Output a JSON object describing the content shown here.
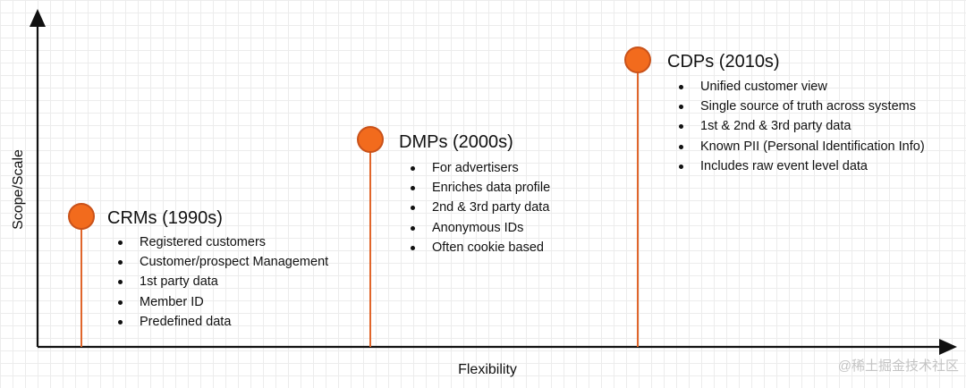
{
  "axes": {
    "y_label": "Scope/Scale",
    "x_label": "Flexibility"
  },
  "colors": {
    "marker_fill": "#f26b1d",
    "marker_stroke": "#c9521a",
    "stem": "#e0652a",
    "axis": "#111111"
  },
  "groups": [
    {
      "title": "CRMs (1990s)",
      "bullets": [
        "Registered customers",
        "Customer/prospect Management",
        "1st party data",
        "Member ID",
        "Predefined data"
      ]
    },
    {
      "title": "DMPs (2000s)",
      "bullets": [
        "For advertisers",
        "Enriches data profile",
        "2nd & 3rd party data",
        "Anonymous IDs",
        "Often cookie based"
      ]
    },
    {
      "title": "CDPs (2010s)",
      "bullets": [
        "Unified customer view",
        "Single source of truth across systems",
        "1st & 2nd & 3rd party data",
        "Known PII (Personal Identification Info)",
        "Includes raw event level data"
      ]
    }
  ],
  "watermark": "@稀土掘金技术社区"
}
